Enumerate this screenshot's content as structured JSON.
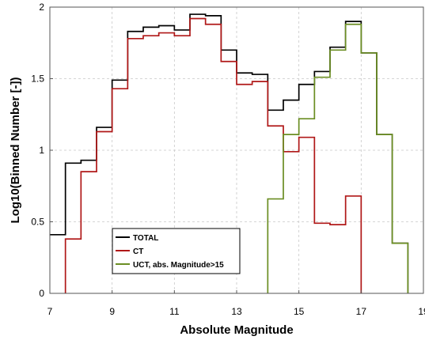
{
  "chart_data": {
    "type": "line",
    "style": "step",
    "title": "",
    "xlabel": "Absolute Magnitude",
    "ylabel": "Log10(Binned Number [-])",
    "xlim": [
      7,
      19
    ],
    "ylim": [
      0,
      2
    ],
    "xticks": [
      "7",
      "9",
      "11",
      "13",
      "15",
      "17",
      "19"
    ],
    "yticks": [
      "0",
      "0.5",
      "1",
      "1.5",
      "2"
    ],
    "grid": true,
    "legend_position": "bottom-center",
    "bin_edges": [
      7.0,
      7.5,
      8.0,
      8.5,
      9.0,
      9.5,
      10.0,
      10.5,
      11.0,
      11.5,
      12.0,
      12.5,
      13.0,
      13.5,
      14.0,
      14.5,
      15.0,
      15.5,
      16.0,
      16.5,
      17.0,
      17.5,
      18.0,
      18.5,
      19.0
    ],
    "series": [
      {
        "name": "TOTAL",
        "color": "#000000",
        "values": [
          0.41,
          0.91,
          0.93,
          1.16,
          1.49,
          1.83,
          1.86,
          1.87,
          1.84,
          1.95,
          1.94,
          1.7,
          1.54,
          1.53,
          1.28,
          1.35,
          1.46,
          1.55,
          1.72,
          1.9,
          1.68,
          1.11,
          0.35,
          null
        ]
      },
      {
        "name": "CT",
        "color": "#b01818",
        "values": [
          null,
          0.38,
          0.85,
          1.13,
          1.43,
          1.78,
          1.8,
          1.82,
          1.8,
          1.92,
          1.88,
          1.62,
          1.46,
          1.48,
          1.17,
          0.99,
          1.09,
          0.49,
          0.48,
          0.68,
          null,
          null,
          null,
          null
        ]
      },
      {
        "name": "UCT, abs. Magnitude>15",
        "color": "#6b8e23",
        "values": [
          null,
          null,
          null,
          null,
          null,
          null,
          null,
          null,
          null,
          null,
          null,
          null,
          null,
          null,
          0.66,
          1.11,
          1.22,
          1.51,
          1.7,
          1.88,
          1.68,
          1.11,
          0.35,
          null
        ]
      }
    ]
  }
}
